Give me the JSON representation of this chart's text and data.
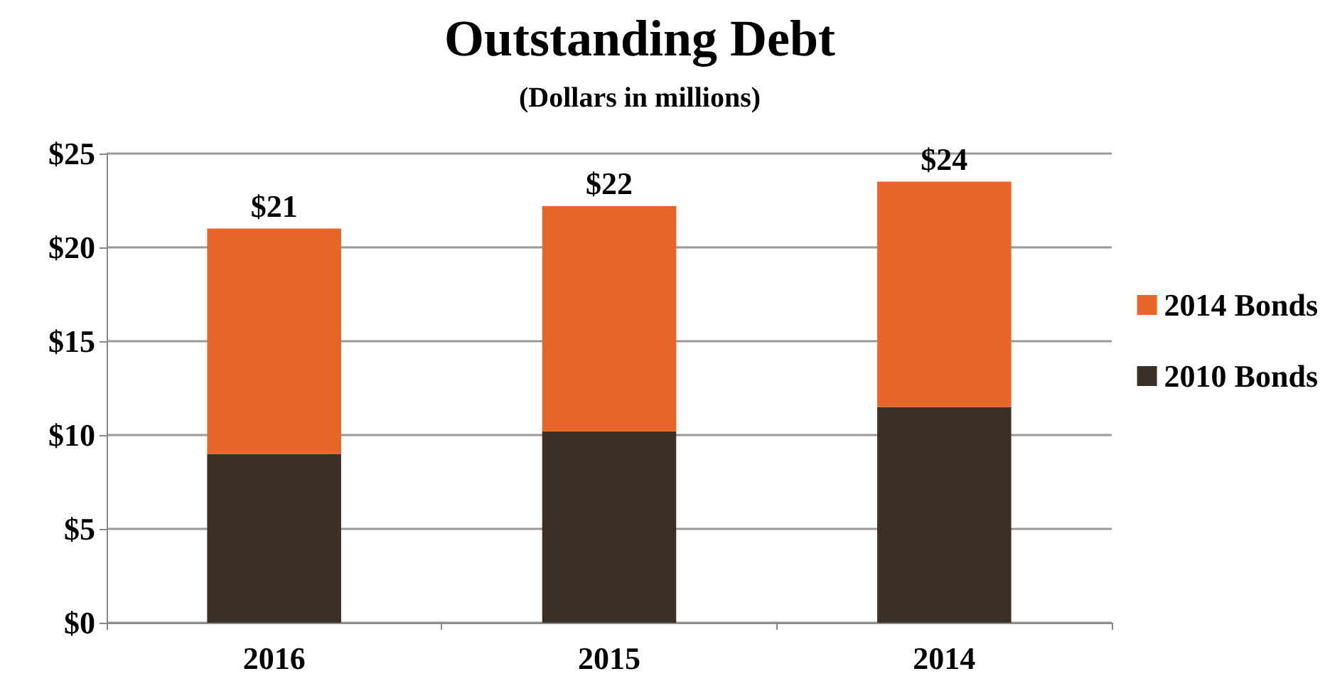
{
  "chart_data": {
    "type": "bar",
    "title": "Outstanding Debt",
    "subtitle": "(Dollars in millions)",
    "categories": [
      "2016",
      "2015",
      "2014"
    ],
    "stacked": true,
    "series": [
      {
        "name": "2010 Bonds",
        "color": "#3b2f26",
        "values": [
          9.0,
          10.2,
          11.5
        ]
      },
      {
        "name": "2014 Bonds",
        "color": "#e8652a",
        "values": [
          12.0,
          12.0,
          12.0
        ]
      }
    ],
    "totals": [
      "$21",
      "$22",
      "$24"
    ],
    "ylim": [
      0,
      25
    ],
    "yticks": [
      {
        "value": 0,
        "label": "$0"
      },
      {
        "value": 5,
        "label": "$5"
      },
      {
        "value": 10,
        "label": "$10"
      },
      {
        "value": 15,
        "label": "$15"
      },
      {
        "value": 20,
        "label": "$20"
      },
      {
        "value": 25,
        "label": "$25"
      }
    ],
    "grid": "y",
    "legend": "right"
  }
}
